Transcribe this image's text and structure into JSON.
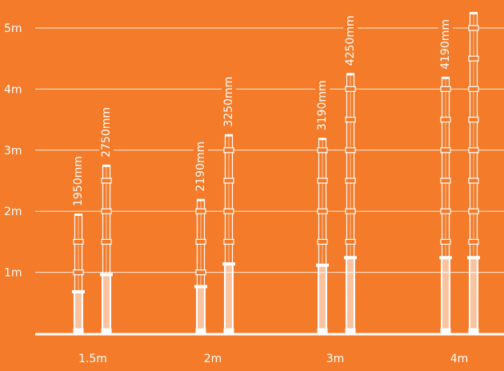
{
  "chart_data": {
    "type": "bar",
    "title": "",
    "xlabel": "",
    "ylabel": "",
    "ylim": [
      0,
      5
    ],
    "grid": true,
    "y_ticks": [
      {
        "value": 1,
        "label": "1m"
      },
      {
        "value": 2,
        "label": "2m"
      },
      {
        "value": 3,
        "label": "3m"
      },
      {
        "value": 4,
        "label": "4m"
      },
      {
        "value": 5,
        "label": "5m"
      }
    ],
    "categories": [
      "1.5m",
      "2m",
      "3m",
      "4m"
    ],
    "series": [
      {
        "values": [
          1950,
          2190,
          3190,
          4190
        ]
      },
      {
        "values": [
          2750,
          3250,
          4250,
          5250
        ]
      }
    ],
    "data_labels": [
      [
        "1950mm",
        "2750mm"
      ],
      [
        "2190mm",
        "3250mm"
      ],
      [
        "3190mm",
        "4250mm"
      ],
      [
        "4190mm",
        ""
      ]
    ],
    "colors": {
      "background": "#F47B2A",
      "foreground": "#FFFFFF"
    }
  }
}
